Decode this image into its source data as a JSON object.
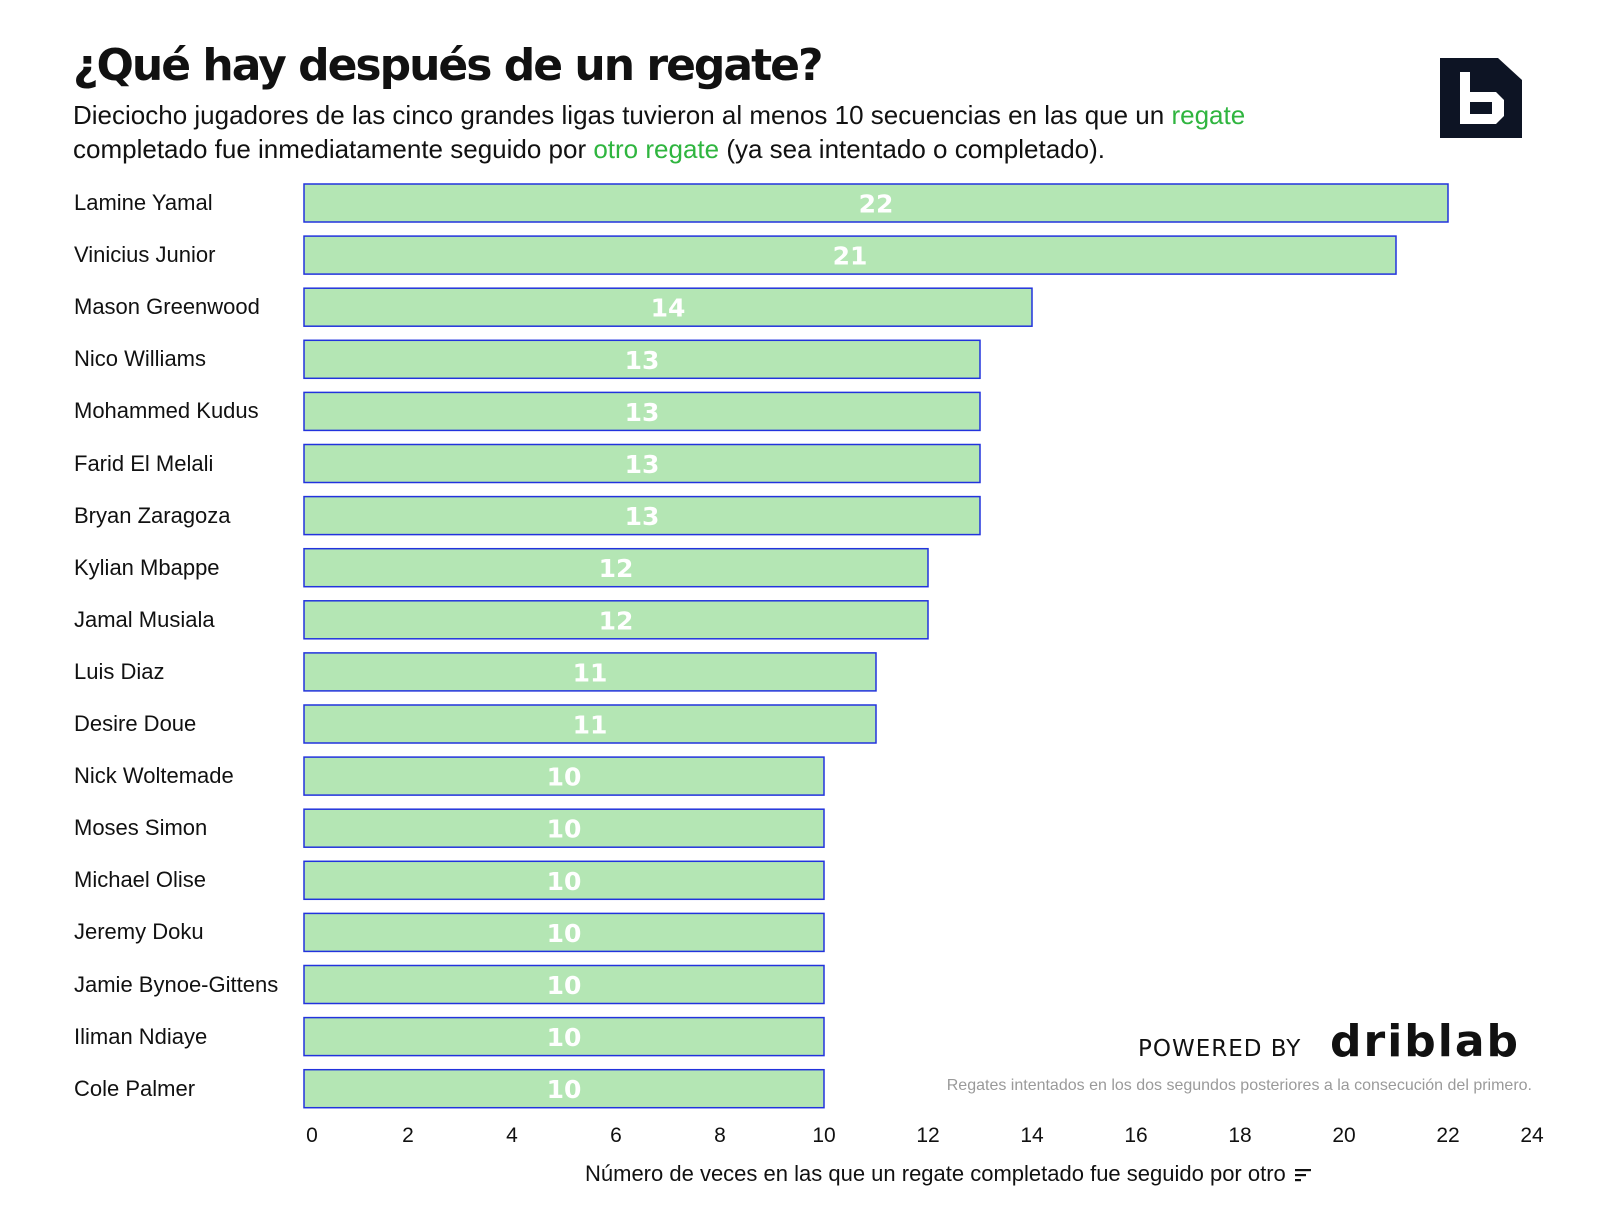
{
  "header": {
    "title": "¿Qué hay después de un regate?",
    "subtitle_part1": "Dieciocho jugadores de las cinco grandes ligas tuvieron al menos 10 secuencias en las que un ",
    "subtitle_hl1": "regate",
    "subtitle_part2": " completado fue inmediatamente seguido por ",
    "subtitle_hl2": "otro regate",
    "subtitle_part3": " (ya sea intentado o completado)."
  },
  "branding": {
    "logo_icon": "b-logo-icon",
    "powered_by": "POWERED BY",
    "brand_name": "driblab"
  },
  "footnote": "Regates intentados en los dos segundos posteriores a la consecución del primero.",
  "colors": {
    "bar_fill": "#b4e6b4",
    "bar_stroke": "#2233dd",
    "highlight": "#2fb53f"
  },
  "chart_data": {
    "type": "bar",
    "orientation": "horizontal",
    "categories": [
      "Lamine Yamal",
      "Vinicius Junior",
      "Mason Greenwood",
      "Nico Williams",
      "Mohammed Kudus",
      "Farid El Melali",
      "Bryan Zaragoza",
      "Kylian Mbappe",
      "Jamal Musiala",
      "Luis Diaz",
      "Desire Doue",
      "Nick Woltemade",
      "Moses Simon",
      "Michael Olise",
      "Jeremy Doku",
      "Jamie Bynoe-Gittens",
      "Iliman Ndiaye",
      "Cole Palmer"
    ],
    "values": [
      22,
      21,
      14,
      13,
      13,
      13,
      13,
      12,
      12,
      11,
      11,
      10,
      10,
      10,
      10,
      10,
      10,
      10
    ],
    "xlabel": "Número de veces en las que un regate completado fue seguido por otro",
    "xlim": [
      0,
      24
    ],
    "xticks": [
      0,
      2,
      4,
      6,
      8,
      10,
      12,
      14,
      16,
      18,
      20,
      22,
      24
    ],
    "grid": false,
    "legend": "none",
    "data_labels": "inside-center"
  }
}
